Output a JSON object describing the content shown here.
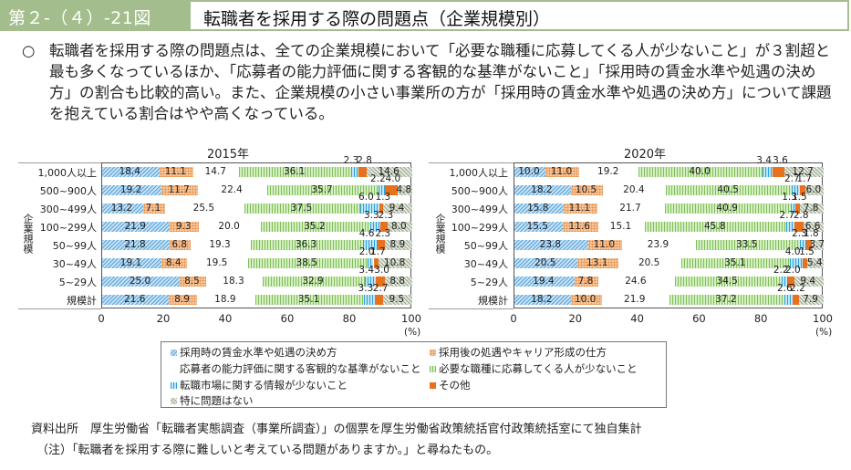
{
  "header": {
    "figure_number": "第２-（４）-21図",
    "title": "転職者を採用する際の問題点（企業規模別）"
  },
  "summary": {
    "bullet": "○",
    "text": "転職者を採用する際の問題点は、全ての企業規模において「必要な職種に応募してくる人が少ないこと」が３割超と最も多くなっているほか、「応募者の能力評価に関する客観的な基準がないこと」「採用時の賃金水準や処遇の決め方」の割合も比較的高い。また、企業規模の小さい事業所の方が「採用時の賃金水準や処遇の決め方」について課題を抱えている割合はやや高くなっている。"
  },
  "chart_data": [
    {
      "type": "bar",
      "orientation": "horizontal",
      "stacked": true,
      "title": "2015年",
      "ylabel": "企業規模",
      "xlabel": "(%)",
      "xlim": [
        0,
        100
      ],
      "xticks": [
        "0",
        "20",
        "40",
        "60",
        "80",
        "100"
      ],
      "categories": [
        "1,000人以上",
        "500~900人",
        "300~499人",
        "100~299人",
        "50~99人",
        "30~49人",
        "5~29人",
        "規模計"
      ],
      "series": [
        {
          "name": "採用時の賃金水準や処遇の決め方",
          "values": [
            18.4,
            19.2,
            13.2,
            21.9,
            21.8,
            19.1,
            25.0,
            21.6
          ]
        },
        {
          "name": "採用後の処遇やキャリア形成の仕方",
          "values": [
            11.1,
            11.7,
            7.1,
            9.3,
            6.8,
            8.4,
            8.5,
            8.9
          ]
        },
        {
          "name": "応募者の能力評価に関する客観的な基準がないこと",
          "values": [
            14.7,
            22.4,
            25.5,
            20.0,
            19.3,
            19.5,
            18.3,
            18.9
          ]
        },
        {
          "name": "必要な職種に応募してくる人が少ないこと",
          "values": [
            36.1,
            35.7,
            37.5,
            35.2,
            36.3,
            38.5,
            32.9,
            35.1
          ]
        },
        {
          "name": "転職市場に関する情報が少ないこと",
          "values": [
            2.3,
            2.2,
            6.0,
            3.3,
            4.6,
            2.0,
            3.4,
            3.3
          ]
        },
        {
          "name": "その他",
          "values": [
            2.8,
            4.0,
            1.3,
            2.3,
            2.3,
            1.7,
            3.0,
            2.7
          ]
        },
        {
          "name": "特に問題はない",
          "values": [
            14.6,
            4.8,
            9.4,
            8.0,
            8.9,
            10.8,
            8.8,
            9.5
          ]
        }
      ]
    },
    {
      "type": "bar",
      "orientation": "horizontal",
      "stacked": true,
      "title": "2020年",
      "ylabel": "企業規模",
      "xlabel": "(%)",
      "xlim": [
        0,
        100
      ],
      "xticks": [
        "0",
        "20",
        "40",
        "60",
        "80",
        "100"
      ],
      "categories": [
        "1,000人以上",
        "500~900人",
        "300~499人",
        "100~299人",
        "50~99人",
        "30~49人",
        "5~29人",
        "規模計"
      ],
      "series": [
        {
          "name": "採用時の賃金水準や処遇の決め方",
          "values": [
            10.0,
            18.2,
            15.8,
            15.5,
            23.8,
            20.5,
            19.4,
            18.2
          ]
        },
        {
          "name": "採用後の処遇やキャリア形成の仕方",
          "values": [
            11.0,
            10.5,
            11.1,
            11.6,
            11.0,
            13.1,
            7.8,
            10.0
          ]
        },
        {
          "name": "応募者の能力評価に関する客観的な基準がないこと",
          "values": [
            19.2,
            20.4,
            21.7,
            15.1,
            23.9,
            20.5,
            24.6,
            21.9
          ]
        },
        {
          "name": "必要な職種に応募してくる人が少ないこと",
          "values": [
            40.0,
            40.5,
            40.9,
            45.8,
            33.5,
            35.1,
            34.5,
            37.2
          ]
        },
        {
          "name": "転職市場に関する情報が少ないこと",
          "values": [
            3.4,
            2.7,
            1.3,
            2.7,
            2.3,
            4.0,
            2.2,
            2.6
          ]
        },
        {
          "name": "その他",
          "values": [
            3.6,
            1.7,
            1.5,
            2.8,
            1.8,
            1.5,
            2.0,
            2.2
          ]
        },
        {
          "name": "特に問題はない",
          "values": [
            12.7,
            6.0,
            7.8,
            6.6,
            3.7,
            5.4,
            9.4,
            7.9
          ]
        }
      ]
    }
  ],
  "legend": {
    "items": [
      {
        "label": "採用時の賃金水準や処遇の決め方",
        "color": "#5aa3d8"
      },
      {
        "label": "採用後の処遇やキャリア形成の仕方",
        "color": "#e88a3e"
      },
      {
        "label": "応募者の能力評価に関する客観的な基準がないこと",
        "color": "#d58ad8"
      },
      {
        "label": "必要な職種に応募してくる人が少ないこと",
        "color": "#7fbf5a"
      },
      {
        "label": "転職市場に関する情報が少ないこと",
        "color": "#2ea0d8"
      },
      {
        "label": "その他",
        "color": "#e8711e"
      },
      {
        "label": "特に問題はない",
        "color": "#9aa890"
      }
    ]
  },
  "footer": {
    "source": "資料出所　厚生労働省「転職者実態調査（事業所調査）」の個票を厚生労働省政策統括官付政策統括室にて独自集計",
    "note": "（注）「転職者を採用する際に難しいと考えている問題がありますか。」と尋ねたもの。"
  },
  "colors": {
    "header_green": "#a3be8c"
  }
}
